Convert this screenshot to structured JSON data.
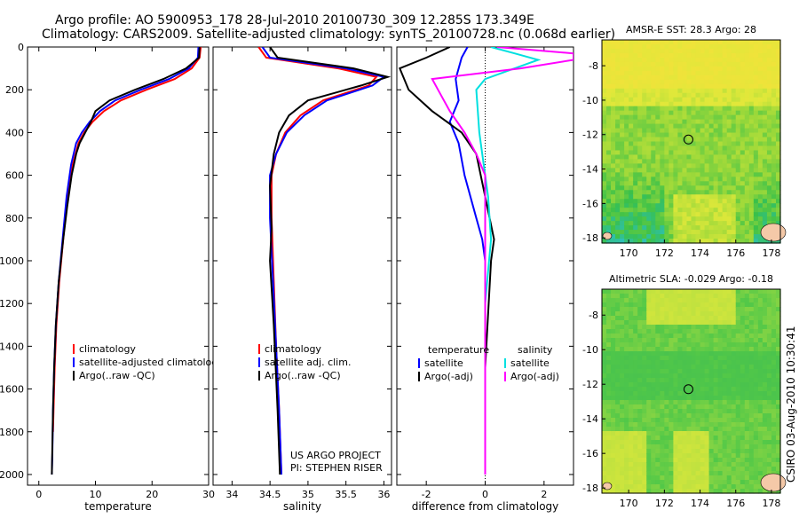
{
  "header": {
    "line1": "Argo profile: AO 5900953_178 28-Jul-2010 20100730_309 12.285S 173.349E",
    "line2": "Climatology: CARS2009. Satellite-adjusted climatology: synTS_20100728.nc (0.068d earlier)"
  },
  "credit": "CSIRO 03-Aug-2010 10:30:41",
  "project": {
    "line1": "US ARGO PROJECT",
    "line2": "PI: STEPHEN RISER"
  },
  "colors": {
    "climatology": "#ff0000",
    "satellite": "#0000ff",
    "argo": "#000000",
    "sat_cyan": "#00e0e0",
    "argo_magenta": "#ff00ff"
  },
  "chart_data": [
    {
      "id": "temperature",
      "type": "line",
      "xlabel": "temperature",
      "xlim": [
        -2,
        30
      ],
      "ylim": [
        0,
        2050
      ],
      "y_reversed": true,
      "xticks": [
        0,
        10,
        20,
        30
      ],
      "xtick_labels": [
        "0",
        "10",
        "20",
        "30"
      ],
      "yticks": [
        0,
        200,
        400,
        600,
        800,
        1000,
        1200,
        1400,
        1600,
        1800,
        2000
      ],
      "ytick_labels": [
        "0",
        "200",
        "400",
        "600",
        "800",
        "1000",
        "1200",
        "1400",
        "1600",
        "1800",
        "2000"
      ],
      "legend": [
        "climatology",
        "satellite-adjusted climatology",
        "Argo(..raw -QC)"
      ],
      "series": [
        {
          "name": "climatology",
          "color": "#ff0000",
          "x": [
            28.6,
            28.4,
            27.0,
            24.0,
            19.0,
            14.5,
            11.5,
            9.5,
            8.0,
            7.0,
            6.0,
            5.0,
            4.3,
            3.6,
            3.1,
            2.8,
            2.6,
            2.5
          ],
          "y": [
            0,
            50,
            100,
            150,
            200,
            250,
            300,
            350,
            400,
            450,
            550,
            700,
            900,
            1100,
            1300,
            1500,
            1700,
            1800
          ]
        },
        {
          "name": "satellite-adjusted climatology",
          "color": "#0000ff",
          "x": [
            28.2,
            28.1,
            26.5,
            23.0,
            18.0,
            13.5,
            10.8,
            9.0,
            7.6,
            6.6,
            5.7,
            4.9,
            4.2,
            3.5,
            3.0,
            2.7,
            2.5,
            2.4,
            2.3
          ],
          "y": [
            0,
            50,
            100,
            150,
            200,
            250,
            300,
            350,
            400,
            450,
            550,
            700,
            900,
            1100,
            1300,
            1500,
            1700,
            1900,
            2000
          ]
        },
        {
          "name": "Argo(..raw -QC)",
          "color": "#000000",
          "x": [
            28.4,
            28.3,
            26.0,
            22.0,
            17.0,
            12.5,
            10.0,
            9.2,
            8.2,
            7.2,
            6.6,
            5.8,
            5.0,
            4.3,
            3.5,
            3.0,
            2.7,
            2.5,
            2.3
          ],
          "y": [
            0,
            50,
            100,
            150,
            200,
            250,
            300,
            350,
            400,
            450,
            500,
            600,
            750,
            900,
            1100,
            1300,
            1500,
            1700,
            2000
          ]
        }
      ]
    },
    {
      "id": "salinity",
      "type": "line",
      "xlabel": "salinity",
      "xlim": [
        33.75,
        36.1
      ],
      "ylim": [
        0,
        2050
      ],
      "y_reversed": true,
      "xticks": [
        34,
        34.5,
        35,
        35.5,
        36
      ],
      "xtick_labels": [
        "34",
        "34.5",
        "35",
        "35.5",
        "36"
      ],
      "legend": [
        "climatology",
        "satellite adj. clim.",
        "Argo(..raw -QC)"
      ],
      "series": [
        {
          "name": "climatology",
          "color": "#ff0000",
          "x": [
            34.35,
            34.45,
            35.4,
            35.9,
            35.8,
            35.2,
            34.9,
            34.7,
            34.58,
            34.52,
            34.52,
            34.55,
            34.58,
            34.62,
            34.65
          ],
          "y": [
            0,
            50,
            100,
            140,
            180,
            250,
            320,
            400,
            500,
            600,
            800,
            1100,
            1400,
            1700,
            2000
          ]
        },
        {
          "name": "satellite adj. clim.",
          "color": "#0000ff",
          "x": [
            34.4,
            34.5,
            35.5,
            36.0,
            35.85,
            35.25,
            34.95,
            34.72,
            34.58,
            34.5,
            34.5,
            34.54,
            34.58,
            34.62,
            34.65
          ],
          "y": [
            0,
            50,
            100,
            140,
            180,
            250,
            320,
            400,
            500,
            600,
            800,
            1100,
            1400,
            1700,
            2000
          ]
        },
        {
          "name": "Argo(..raw -QC)",
          "color": "#000000",
          "x": [
            34.5,
            34.6,
            35.6,
            36.05,
            35.7,
            35.0,
            34.75,
            34.62,
            34.55,
            34.5,
            34.52,
            34.5,
            34.55,
            34.6,
            34.63
          ],
          "y": [
            0,
            50,
            100,
            140,
            180,
            250,
            320,
            400,
            500,
            650,
            850,
            1000,
            1300,
            1700,
            2000
          ]
        }
      ]
    },
    {
      "id": "difference",
      "type": "line",
      "xlabel": "difference from climatology",
      "xlim": [
        -3,
        3
      ],
      "ylim": [
        0,
        2050
      ],
      "y_reversed": true,
      "xticks": [
        -2,
        0,
        2
      ],
      "xtick_labels": [
        "-2",
        "0",
        "2"
      ],
      "legend_columns": [
        "temperature",
        "salinity"
      ],
      "legend": [
        "satellite",
        "Argo(-adj)",
        "satellite",
        "Argo(-adj)"
      ],
      "series": [
        {
          "name": "satellite",
          "group": "temperature",
          "color": "#0000ff",
          "x": [
            -0.6,
            -0.8,
            -1.0,
            -0.9,
            -1.2,
            -0.9,
            -0.7,
            -0.3,
            -0.1,
            0.0,
            0.0,
            0.0
          ],
          "y": [
            0,
            50,
            150,
            250,
            350,
            450,
            600,
            800,
            900,
            1000,
            1500,
            2000
          ]
        },
        {
          "name": "Argo(-adj)",
          "group": "temperature",
          "color": "#000000",
          "x": [
            -1.2,
            -2.0,
            -2.9,
            -2.6,
            -1.8,
            -0.8,
            -0.3,
            0.0,
            0.3,
            0.2,
            0.0,
            0.0
          ],
          "y": [
            0,
            50,
            100,
            200,
            300,
            400,
            500,
            700,
            900,
            1000,
            1500,
            2000
          ]
        },
        {
          "name": "satellite",
          "group": "salinity",
          "color": "#00e0e0",
          "x": [
            0.2,
            1.0,
            1.8,
            1.0,
            0.0,
            -0.3,
            -0.2,
            0.1,
            0.2,
            0.0,
            0.0
          ],
          "y": [
            0,
            30,
            60,
            100,
            150,
            200,
            400,
            700,
            900,
            1200,
            2000
          ]
        },
        {
          "name": "Argo(-adj)",
          "group": "salinity",
          "color": "#ff00ff",
          "x": [
            0.4,
            3.0,
            3.0,
            1.2,
            -1.8,
            -1.6,
            -1.2,
            -0.7,
            -0.3,
            0.0,
            0.0
          ],
          "y": [
            0,
            30,
            60,
            100,
            150,
            200,
            300,
            400,
            500,
            600,
            2000
          ]
        }
      ]
    },
    {
      "id": "sst-map",
      "type": "heatmap",
      "title": "AMSR-E SST: 28.3 Argo: 28",
      "xlim": [
        168.5,
        178.5
      ],
      "ylim": [
        -18.3,
        -6.5
      ],
      "xticks": [
        170,
        172,
        174,
        176,
        178
      ],
      "xtick_labels": [
        "170",
        "172",
        "174",
        "176",
        "178"
      ],
      "yticks": [
        -8,
        -10,
        -12,
        -14,
        -16,
        -18
      ],
      "ytick_labels": [
        "-8",
        "-10",
        "-12",
        "-14",
        "-16",
        "-18"
      ],
      "marker": {
        "x": 173.349,
        "y": -12.285
      }
    },
    {
      "id": "sla-map",
      "type": "heatmap",
      "title": "Altimetric SLA: -0.029 Argo: -0.18",
      "xlim": [
        168.5,
        178.5
      ],
      "ylim": [
        -18.3,
        -6.5
      ],
      "xticks": [
        170,
        172,
        174,
        176,
        178
      ],
      "xtick_labels": [
        "170",
        "172",
        "174",
        "176",
        "178"
      ],
      "yticks": [
        -8,
        -10,
        -12,
        -14,
        -16,
        -18
      ],
      "ytick_labels": [
        "-8",
        "-10",
        "-12",
        "-14",
        "-16",
        "-18"
      ],
      "marker": {
        "x": 173.349,
        "y": -12.285
      }
    }
  ]
}
